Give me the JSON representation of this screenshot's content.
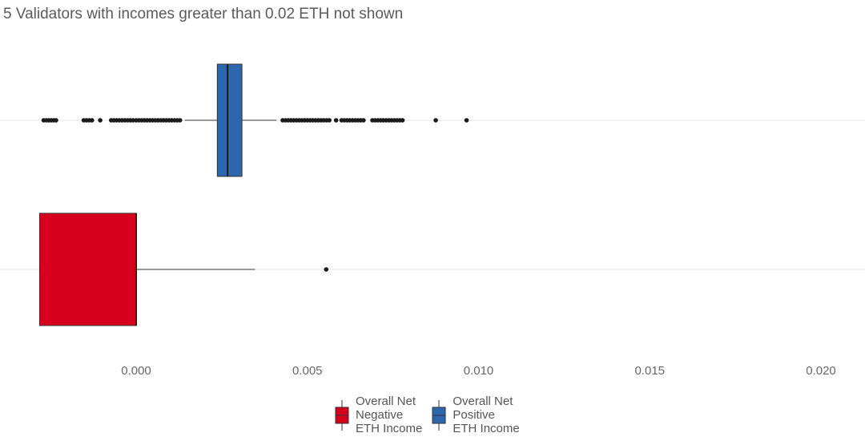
{
  "subtitle": "5 Validators with incomes greater than 0.02 ETH not shown",
  "chart_data": {
    "type": "boxplot",
    "orientation": "horizontal",
    "title": "",
    "subtitle": "5 Validators with incomes greater than 0.02 ETH not shown",
    "xlabel": "",
    "ylabel": "",
    "xlim": [
      -0.0028,
      0.0209
    ],
    "x_ticks": [
      0.0,
      0.005,
      0.01,
      0.015,
      0.02
    ],
    "x_tick_labels": [
      "0.000",
      "0.005",
      "0.010",
      "0.015",
      "0.020"
    ],
    "grid": "horizontal-major",
    "legend": "bottom",
    "series": [
      {
        "name": "Overall Net Positive ETH Income",
        "color": "#2c66ac",
        "whisker_low": 0.00142,
        "q1": 0.00237,
        "median": 0.00267,
        "q3": 0.00309,
        "whisker_high": 0.0041,
        "outliers": [
          -0.0027,
          -0.00262,
          -0.00255,
          -0.00248,
          -0.00241,
          -0.00234,
          -0.00153,
          -0.00145,
          -0.00137,
          -0.00129,
          -0.00105,
          -0.00073,
          -0.00065,
          -0.00057,
          -0.00049,
          -0.00041,
          -0.00033,
          -0.00025,
          -0.00017,
          -9e-05,
          0.0,
          8e-05,
          0.00016,
          0.00024,
          0.00032,
          0.0004,
          0.00048,
          0.00056,
          0.00064,
          0.00072,
          0.0008,
          0.00088,
          0.00096,
          0.00104,
          0.00112,
          0.0012,
          0.00128,
          0.00428,
          0.00436,
          0.00444,
          0.00452,
          0.0046,
          0.00468,
          0.00476,
          0.00484,
          0.00492,
          0.005,
          0.00508,
          0.00516,
          0.00524,
          0.00532,
          0.0054,
          0.00548,
          0.00556,
          0.00564,
          0.00584,
          0.006,
          0.00608,
          0.00616,
          0.00624,
          0.00632,
          0.0064,
          0.00648,
          0.00656,
          0.00664,
          0.0069,
          0.00698,
          0.00706,
          0.00714,
          0.00722,
          0.0073,
          0.00738,
          0.00746,
          0.00754,
          0.00762,
          0.0077,
          0.00778,
          0.00875,
          0.00965
        ]
      },
      {
        "name": "Overall Net Negative ETH Income",
        "color": "#d7001c",
        "whisker_low": -0.00282,
        "q1": -0.00282,
        "median": 0.0,
        "q3": 0.0,
        "whisker_high": 0.00347,
        "outliers": [
          0.00555
        ]
      }
    ]
  },
  "legend": {
    "items": [
      {
        "label": "Overall Net\nNegative\nETH Income",
        "color": "#d7001c"
      },
      {
        "label": "Overall Net\nPositive\nETH Income",
        "color": "#2c66ac"
      }
    ]
  }
}
